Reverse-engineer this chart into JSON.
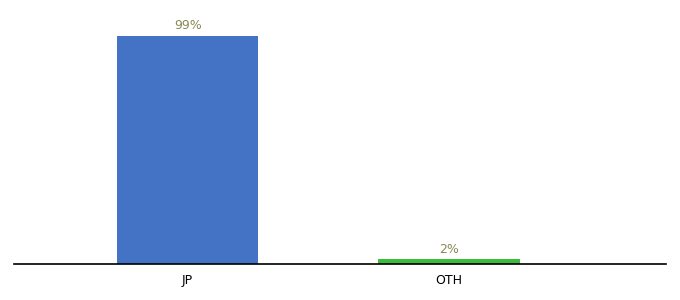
{
  "categories": [
    "JP",
    "OTH"
  ],
  "values": [
    99,
    2
  ],
  "bar_colors": [
    "#4472c4",
    "#3dbb3d"
  ],
  "label_colors": [
    "#888855",
    "#888855"
  ],
  "background_color": "#ffffff",
  "ylim": [
    0,
    108
  ],
  "xlim": [
    -0.5,
    2.5
  ],
  "bar_positions": [
    0.3,
    1.5
  ],
  "bar_width": 0.65,
  "label_fontsize": 9,
  "tick_fontsize": 9
}
